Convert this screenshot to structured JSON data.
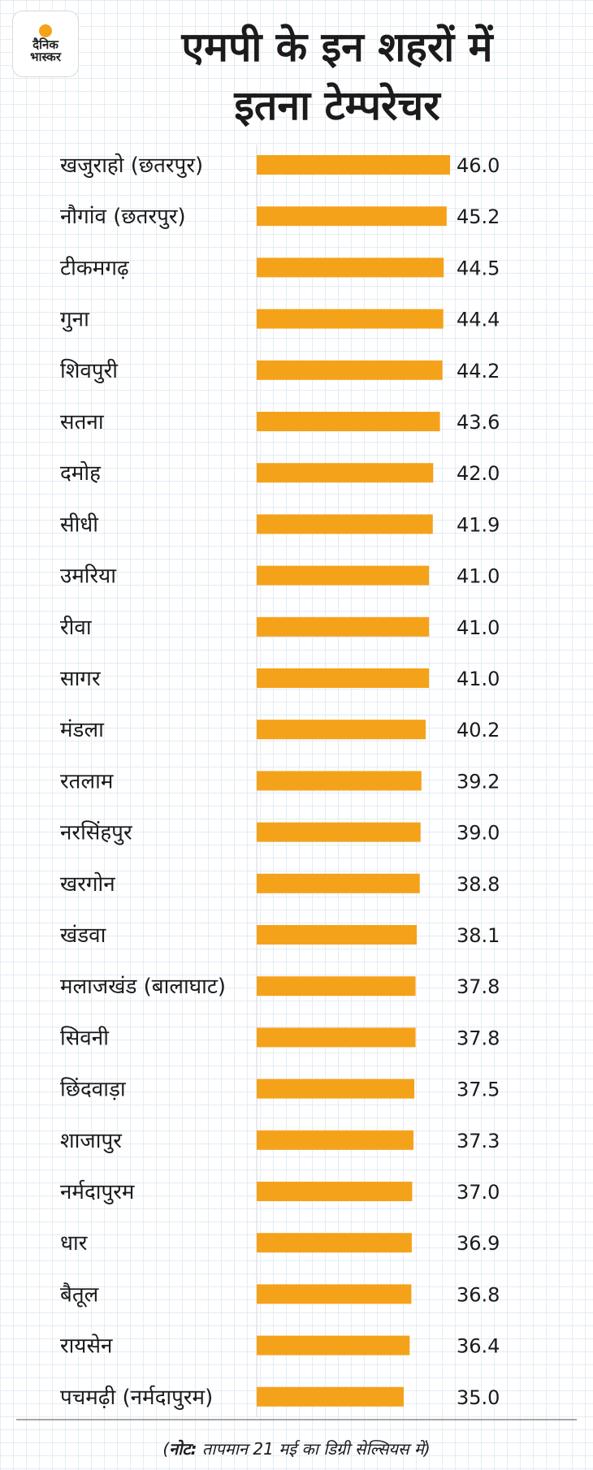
{
  "brand": {
    "logo_text_line1": "दैनिक",
    "logo_text_line2": "भास्कर"
  },
  "header": {
    "title_line1": "एमपी के इन शहरों में",
    "title_line2": "इतना टेम्परेचर"
  },
  "note": {
    "prefix": "नोट:",
    "text": " तापमान 21 मई का डिग्री सेल्सियस में)",
    "open_paren": "("
  },
  "colors": {
    "bar": "#f5a21b",
    "accent": "#f5a21b",
    "text": "#1b1b1b"
  },
  "chart_data": {
    "type": "bar",
    "orientation": "horizontal",
    "categories": [
      "खजुराहो (छतरपुर)",
      "नौगांव (छतरपुर)",
      "टीकमगढ़",
      "गुना",
      "शिवपुरी",
      "सतना",
      "दमोह",
      "सीधी",
      "उमरिया",
      "रीवा",
      "सागर",
      "मंडला",
      "रतलाम",
      "नरसिंहपुर",
      "खरगोन",
      "खंडवा",
      "मलाजखंड (बालाघाट)",
      "सिवनी",
      "छिंदवाड़ा",
      "शाजापुर",
      "नर्मदापुरम",
      "धार",
      "बैतूल",
      "रायसेन",
      "पचमढ़ी (नर्मदापुरम)"
    ],
    "values": [
      46.0,
      45.2,
      44.5,
      44.4,
      44.2,
      43.6,
      42.0,
      41.9,
      41.0,
      41.0,
      41.0,
      40.2,
      39.2,
      39.0,
      38.8,
      38.1,
      37.8,
      37.8,
      37.5,
      37.3,
      37.0,
      36.9,
      36.8,
      36.4,
      35.0
    ],
    "value_labels": [
      "46.0",
      "45.2",
      "44.5",
      "44.4",
      "44.2",
      "43.6",
      "42.0",
      "41.9",
      "41.0",
      "41.0",
      "41.0",
      "40.2",
      "39.2",
      "39.0",
      "38.8",
      "38.1",
      "37.8",
      "37.8",
      "37.5",
      "37.3",
      "37.0",
      "36.9",
      "36.8",
      "36.4",
      "35.0"
    ],
    "xlim": [
      0,
      46.0
    ],
    "grid": false
  }
}
